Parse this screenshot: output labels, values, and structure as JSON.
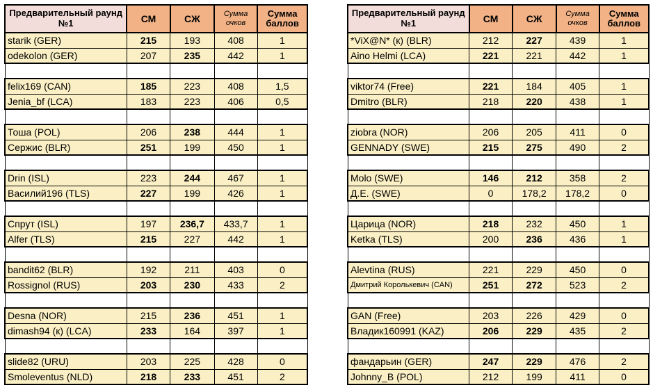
{
  "columns": {
    "name": "Предварительный раунд №1",
    "cm": "СМ",
    "sj": "СЖ",
    "sum_points": "Сумма очков",
    "sum_score": "Сумма баллов"
  },
  "colors": {
    "header_name_bg": "#F3DDDB",
    "header_score_bg": "#F2B286",
    "row_bg": "#FBF0C5",
    "blank_bg": "#FFFFFF",
    "border": "#000000"
  },
  "tables": [
    {
      "id": "left",
      "groups": [
        [
          {
            "name": "starik (GER)",
            "cm": "215",
            "cm_bold": true,
            "sj": "193",
            "sj_bold": false,
            "sum": "408",
            "pts": "1"
          },
          {
            "name": "odekolon (GER)",
            "cm": "207",
            "cm_bold": false,
            "sj": "235",
            "sj_bold": true,
            "sum": "442",
            "pts": "1"
          }
        ],
        [
          {
            "name": "felix169 (CAN)",
            "cm": "185",
            "cm_bold": true,
            "sj": "223",
            "sj_bold": false,
            "sum": "408",
            "pts": "1,5"
          },
          {
            "name": "Jenia_bf (LCA)",
            "cm": "183",
            "cm_bold": false,
            "sj": "223",
            "sj_bold": false,
            "sum": "406",
            "pts": "0,5"
          }
        ],
        [
          {
            "name": "Тоша (POL)",
            "cm": "206",
            "cm_bold": false,
            "sj": "238",
            "sj_bold": true,
            "sum": "444",
            "pts": "1"
          },
          {
            "name": "Сержис (BLR)",
            "cm": "251",
            "cm_bold": true,
            "sj": "199",
            "sj_bold": false,
            "sum": "450",
            "pts": "1"
          }
        ],
        [
          {
            "name": "Drin (ISL)",
            "cm": "223",
            "cm_bold": false,
            "sj": "244",
            "sj_bold": true,
            "sum": "467",
            "pts": "1"
          },
          {
            "name": "Василий196 (TLS)",
            "cm": "227",
            "cm_bold": true,
            "sj": "199",
            "sj_bold": false,
            "sum": "426",
            "pts": "1"
          }
        ],
        [
          {
            "name": "Спрут (ISL)",
            "cm": "197",
            "cm_bold": false,
            "sj": "236,7",
            "sj_bold": true,
            "sum": "433,7",
            "pts": "1"
          },
          {
            "name": "Alfer (TLS)",
            "cm": "215",
            "cm_bold": true,
            "sj": "227",
            "sj_bold": false,
            "sum": "442",
            "pts": "1"
          }
        ],
        [
          {
            "name": "bandit62 (BLR)",
            "cm": "192",
            "cm_bold": false,
            "sj": "211",
            "sj_bold": false,
            "sum": "403",
            "pts": "0"
          },
          {
            "name": "Rossignol (RUS)",
            "cm": "203",
            "cm_bold": true,
            "sj": "230",
            "sj_bold": true,
            "sum": "433",
            "pts": "2"
          }
        ],
        [
          {
            "name": "Desna (NOR)",
            "cm": "215",
            "cm_bold": false,
            "sj": "236",
            "sj_bold": true,
            "sum": "451",
            "pts": "1"
          },
          {
            "name": "dimash94 (к) (LCA)",
            "cm": "233",
            "cm_bold": true,
            "sj": "164",
            "sj_bold": false,
            "sum": "397",
            "pts": "1"
          }
        ],
        [
          {
            "name": "slide82 (URU)",
            "cm": "203",
            "cm_bold": false,
            "sj": "225",
            "sj_bold": false,
            "sum": "428",
            "pts": "0"
          },
          {
            "name": "Smoleventus (NLD)",
            "cm": "218",
            "cm_bold": true,
            "sj": "233",
            "sj_bold": true,
            "sum": "451",
            "pts": "2"
          }
        ]
      ]
    },
    {
      "id": "right",
      "groups": [
        [
          {
            "name": "*ViX@N* (к) (BLR)",
            "cm": "212",
            "cm_bold": false,
            "sj": "227",
            "sj_bold": true,
            "sum": "439",
            "pts": "1"
          },
          {
            "name": "Aino Helmi (LCA)",
            "cm": "221",
            "cm_bold": true,
            "sj": "221",
            "sj_bold": false,
            "sum": "442",
            "pts": "1"
          }
        ],
        [
          {
            "name": "viktor74 (Free)",
            "cm": "221",
            "cm_bold": true,
            "sj": "184",
            "sj_bold": false,
            "sum": "405",
            "pts": "1"
          },
          {
            "name": "Dmitro (BLR)",
            "cm": "218",
            "cm_bold": false,
            "sj": "220",
            "sj_bold": true,
            "sum": "438",
            "pts": "1"
          }
        ],
        [
          {
            "name": "ziobra (NOR)",
            "cm": "206",
            "cm_bold": false,
            "sj": "205",
            "sj_bold": false,
            "sum": "411",
            "pts": "0"
          },
          {
            "name": "GENNADY (SWE)",
            "cm": "215",
            "cm_bold": true,
            "sj": "275",
            "sj_bold": true,
            "sum": "490",
            "pts": "2"
          }
        ],
        [
          {
            "name": "Molo (SWE)",
            "cm": "146",
            "cm_bold": true,
            "sj": "212",
            "sj_bold": true,
            "sum": "358",
            "pts": "2"
          },
          {
            "name": "Д.Е. (SWE)",
            "cm": "0",
            "cm_bold": false,
            "sj": "178,2",
            "sj_bold": false,
            "sum": "178,2",
            "pts": "0"
          }
        ],
        [
          {
            "name": "Царица (NOR)",
            "cm": "218",
            "cm_bold": true,
            "sj": "232",
            "sj_bold": false,
            "sum": "450",
            "pts": "1"
          },
          {
            "name": "Ketka (TLS)",
            "cm": "200",
            "cm_bold": false,
            "sj": "236",
            "sj_bold": true,
            "sum": "436",
            "pts": "1"
          }
        ],
        [
          {
            "name": "Alevtina (RUS)",
            "cm": "221",
            "cm_bold": false,
            "sj": "229",
            "sj_bold": false,
            "sum": "450",
            "pts": "0"
          },
          {
            "name": "Дмитрий Королькевич (CAN)",
            "small": true,
            "cm": "251",
            "cm_bold": true,
            "sj": "272",
            "sj_bold": true,
            "sum": "523",
            "pts": "2"
          }
        ],
        [
          {
            "name": "GAN (Free)",
            "cm": "203",
            "cm_bold": false,
            "sj": "226",
            "sj_bold": false,
            "sum": "429",
            "pts": "0"
          },
          {
            "name": "Владик160991 (KAZ)",
            "cm": "206",
            "cm_bold": true,
            "sj": "229",
            "sj_bold": true,
            "sum": "435",
            "pts": "2"
          }
        ],
        [
          {
            "name": "фандарьин (GER)",
            "cm": "247",
            "cm_bold": true,
            "sj": "229",
            "sj_bold": true,
            "sum": "476",
            "pts": "2"
          },
          {
            "name": "Johnny_B (POL)",
            "cm": "212",
            "cm_bold": false,
            "sj": "199",
            "sj_bold": false,
            "sum": "411",
            "pts": "0"
          }
        ]
      ]
    }
  ]
}
